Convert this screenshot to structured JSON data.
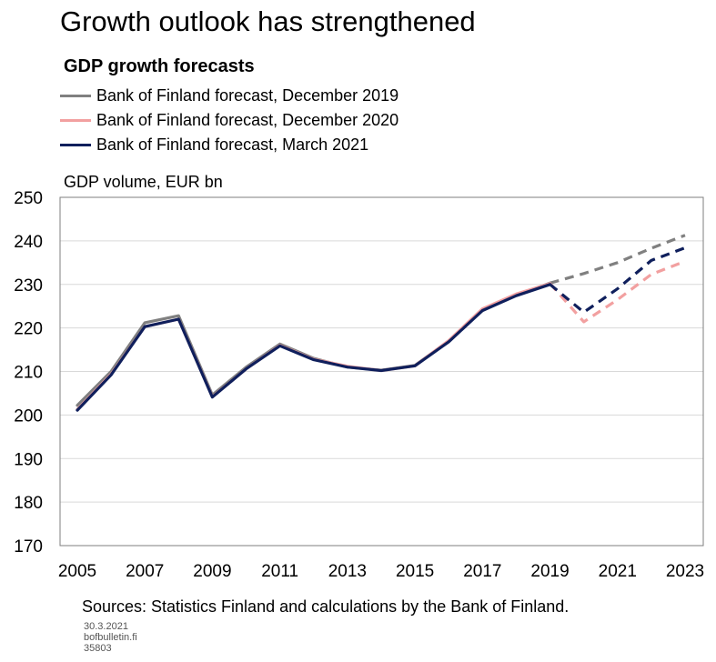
{
  "title": "Growth outlook has strengthened",
  "chart_data": {
    "type": "line",
    "subtitle": "GDP growth forecasts",
    "ylabel": "GDP volume, EUR bn",
    "ylim": [
      170,
      250
    ],
    "yticks": [
      170,
      180,
      190,
      200,
      210,
      220,
      230,
      240,
      250
    ],
    "xlim": [
      2005,
      2023
    ],
    "xticks": [
      2005,
      2007,
      2009,
      2011,
      2013,
      2015,
      2017,
      2019,
      2021,
      2023
    ],
    "grid": true,
    "legend_position": "top-left",
    "series": [
      {
        "name": "Bank of Finland forecast, December 2019",
        "color": "#808080",
        "actual": [
          [
            2005,
            202.2
          ],
          [
            2006,
            210.0
          ],
          [
            2007,
            221.2
          ],
          [
            2008,
            222.8
          ],
          [
            2009,
            204.6
          ],
          [
            2010,
            211.0
          ],
          [
            2011,
            216.3
          ],
          [
            2012,
            213.0
          ],
          [
            2013,
            211.0
          ],
          [
            2014,
            210.3
          ],
          [
            2015,
            211.4
          ],
          [
            2016,
            217.0
          ],
          [
            2017,
            224.0
          ],
          [
            2018,
            227.5
          ],
          [
            2019,
            230.3
          ]
        ],
        "forecast": [
          [
            2019,
            230.3
          ],
          [
            2020,
            232.5
          ],
          [
            2021,
            235.0
          ],
          [
            2022,
            238.3
          ],
          [
            2023,
            241.3
          ]
        ]
      },
      {
        "name": "Bank of Finland forecast, December 2020",
        "color": "#f2a0a0",
        "actual": [
          [
            2005,
            201.3
          ],
          [
            2006,
            209.4
          ],
          [
            2007,
            220.3
          ],
          [
            2008,
            222.0
          ],
          [
            2009,
            204.2
          ],
          [
            2010,
            210.6
          ],
          [
            2011,
            216.0
          ],
          [
            2012,
            212.8
          ],
          [
            2013,
            211.2
          ],
          [
            2014,
            210.2
          ],
          [
            2015,
            211.3
          ],
          [
            2016,
            217.1
          ],
          [
            2017,
            224.4
          ],
          [
            2018,
            227.8
          ],
          [
            2019,
            230.2
          ]
        ],
        "forecast": [
          [
            2019,
            230.2
          ],
          [
            2020,
            221.4
          ],
          [
            2021,
            226.5
          ],
          [
            2022,
            232.3
          ],
          [
            2023,
            235.3
          ]
        ]
      },
      {
        "name": "Bank of Finland forecast, March 2021",
        "color": "#0f1f5c",
        "actual": [
          [
            2005,
            201.1
          ],
          [
            2006,
            209.2
          ],
          [
            2007,
            220.3
          ],
          [
            2008,
            222.0
          ],
          [
            2009,
            204.1
          ],
          [
            2010,
            210.6
          ],
          [
            2011,
            215.9
          ],
          [
            2012,
            212.7
          ],
          [
            2013,
            211.0
          ],
          [
            2014,
            210.2
          ],
          [
            2015,
            211.3
          ],
          [
            2016,
            216.8
          ],
          [
            2017,
            224.0
          ],
          [
            2018,
            227.4
          ],
          [
            2019,
            230.0
          ]
        ],
        "forecast": [
          [
            2019,
            230.0
          ],
          [
            2020,
            223.6
          ],
          [
            2021,
            229.0
          ],
          [
            2022,
            235.5
          ],
          [
            2023,
            238.4
          ]
        ]
      }
    ]
  },
  "footer": {
    "sources": "Sources: Statistics Finland and calculations by the Bank of Finland.",
    "date": "30.3.2021",
    "site": "bofbulletin.fi",
    "code": "35803"
  }
}
